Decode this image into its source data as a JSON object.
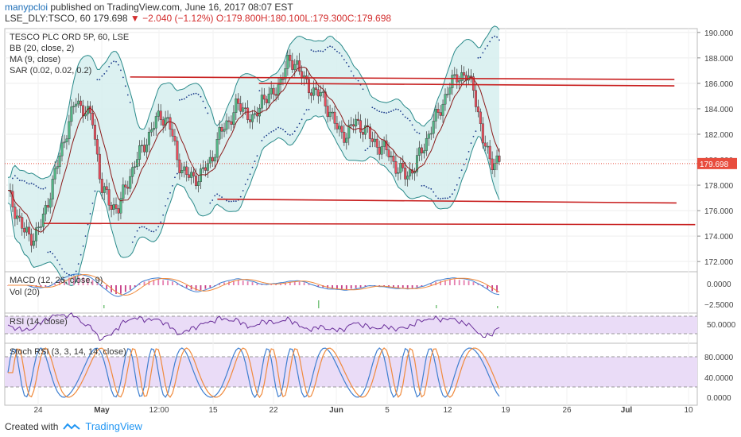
{
  "header": {
    "user": "manypcloi",
    "published": "published on TradingView.com, June 16, 2017 08:07 EST",
    "symbol": "LSE_DLY:TSCO, 60",
    "last": "179.698",
    "change": "▼ −2.040 (−1.12%)",
    "ohlc": {
      "o": "O:179.800",
      "h": "H:180.100",
      "l": "L:179.300",
      "c": "C:179.698"
    }
  },
  "legend": {
    "title": "TESCO PLC ORD 5P, 60, LSE",
    "bb": "BB (20, close, 2)",
    "ma": "MA (9, close)",
    "sar": "SAR (0.02, 0.02, 0.2)"
  },
  "panes": {
    "macd_label": "MACD (12, 26, close, 9)",
    "vol_label": "Vol (20)",
    "rsi_label": "RSI (14, close)",
    "stoch_label": "Stoch RSI (3, 3, 14, 14, close)"
  },
  "footer": {
    "created": "Created with",
    "brand": "TradingView"
  },
  "colors": {
    "up": "#53b987",
    "down": "#eb4d5c",
    "bb": "#2a8a8a",
    "bbfill": "#d6efef",
    "ma": "#8b1a1a",
    "sar": "#1a3a8a",
    "support": "#c81e1e",
    "price_badge": "#e84c3d",
    "rsi_fill": "#eadcf7",
    "rsi_line": "#6a2f9a",
    "stoch_k": "#3f7fd0",
    "stoch_d": "#f08a3c"
  },
  "chart_data": {
    "type": "candlestick",
    "price_axis": {
      "ticks": [
        "190.000",
        "188.000",
        "186.000",
        "184.000",
        "182.000",
        "180.000",
        "178.000",
        "176.000",
        "174.000",
        "172.000"
      ],
      "range": [
        171.2,
        190.3
      ]
    },
    "last_price_label": "179.698",
    "time_axis": {
      "labels": [
        "24",
        "May",
        "12:00",
        "15",
        "22",
        "Jun",
        "5",
        "12",
        "19",
        "26",
        "Jul",
        "10"
      ]
    },
    "close_path": [
      177.3,
      175.8,
      174.2,
      173.9,
      175.0,
      177.5,
      180.0,
      182.5,
      184.6,
      184.0,
      183.0,
      178.0,
      176.5,
      176.2,
      178.0,
      179.8,
      181.0,
      182.5,
      183.5,
      183.0,
      180.0,
      178.8,
      178.5,
      179.0,
      180.0,
      182.0,
      183.0,
      184.2,
      184.0,
      182.8,
      185.0,
      184.8,
      186.0,
      187.5,
      187.8,
      186.0,
      185.5,
      185.0,
      183.8,
      182.2,
      182.0,
      183.0,
      182.5,
      181.5,
      181.0,
      180.5,
      179.2,
      178.8,
      179.4,
      181.0,
      182.5,
      184.0,
      185.5,
      186.7,
      186.5,
      185.8,
      181.5,
      180.0,
      179.7
    ],
    "support_lines": [
      {
        "from": [
          0.181,
          186.5
        ],
        "to": [
          0.967,
          186.3
        ]
      },
      {
        "from": [
          0.367,
          186.0
        ],
        "to": [
          0.967,
          185.8
        ]
      },
      {
        "from": [
          0.307,
          176.9
        ],
        "to": [
          0.97,
          176.6
        ]
      },
      {
        "from": [
          0.056,
          175.0
        ],
        "to": [
          0.997,
          174.9
        ]
      }
    ],
    "macd_axis": [
      "0.0000",
      "−2.5000"
    ],
    "rsi_axis": [
      "50.0000"
    ],
    "stoch_axis": [
      "80.0000",
      "40.0000",
      "0.0000"
    ]
  }
}
